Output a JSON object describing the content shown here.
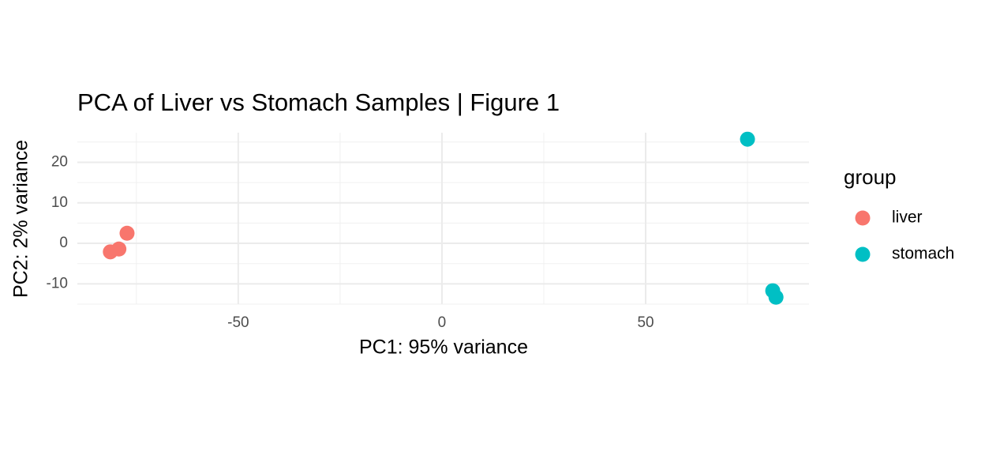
{
  "chart_data": {
    "type": "scatter",
    "title": "PCA of Liver vs Stomach Samples | Figure 1",
    "x_label": "PC1: 95% variance",
    "y_label": "PC2: 2% variance",
    "legend_title": "group",
    "legend_position": "right",
    "grid": true,
    "xlim": [
      -89.5,
      90.1
    ],
    "ylim": [
      -15.0,
      27.3
    ],
    "xticks": [
      -50,
      0,
      50
    ],
    "yticks": [
      -10,
      0,
      10,
      20
    ],
    "series": [
      {
        "name": "liver",
        "color": "#F8766D",
        "x": [
          -77.3,
          -79.3,
          -81.4
        ],
        "values": [
          2.5,
          -1.4,
          -2.1
        ]
      },
      {
        "name": "stomach",
        "color": "#00BFC4",
        "x": [
          75.0,
          81.2,
          82.0
        ],
        "values": [
          25.7,
          -11.7,
          -13.3
        ]
      }
    ]
  }
}
